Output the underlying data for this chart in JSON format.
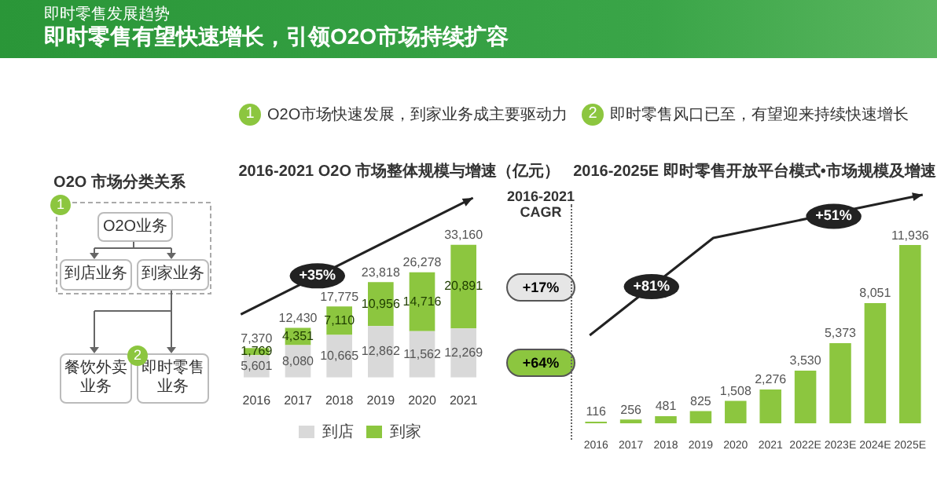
{
  "chart_data": [
    {
      "type": "other",
      "title": "即时零售有望快速增长，引领O2O市场持续扩容",
      "subtitle": "即时零售发展趋势",
      "annotations": [
        "O2O 市场分类关系",
        "1",
        "O2O业务",
        "到店业务",
        "到家业务",
        "2",
        "餐饮外卖业务",
        "即时零售业务"
      ]
    },
    {
      "type": "bar",
      "title": "2016-2021 O2O 市场整体规模与增速（亿元）",
      "subtitle": "O2O市场快速发展，到家业务成主要驱动力",
      "categories": [
        "2016",
        "2017",
        "2018",
        "2019",
        "2020",
        "2021"
      ],
      "stacked": true,
      "series": [
        {
          "name": "到店",
          "color": "#d9d9d9",
          "values": [
            5601,
            8080,
            10665,
            12862,
            11562,
            12269
          ],
          "value_labels": [
            "5,601",
            "8,080",
            "10,665",
            "12,862",
            "11,562",
            "12,269"
          ]
        },
        {
          "name": "到家",
          "color": "#8cc63f",
          "values": [
            1769,
            4351,
            7110,
            10956,
            14716,
            20891
          ],
          "value_labels": [
            "1,769",
            "4,351",
            "7,110",
            "10,956",
            "14,716",
            "20,891"
          ]
        }
      ],
      "totals": [
        "7,370",
        "12,430",
        "17,775",
        "23,818",
        "26,278",
        "33,160"
      ],
      "legend": "bottom",
      "tick_labels": "x",
      "annotations": [
        "1",
        "+35%",
        "2016-2021 CAGR",
        "+17%",
        "+64%"
      ]
    },
    {
      "type": "bar",
      "title": "2016-2025E 即时零售开放平台模式•市场规模及增速",
      "subtitle": "即时零售风口已至，有望迎来持续快速增长",
      "categories": [
        "2016",
        "2017",
        "2018",
        "2019",
        "2020",
        "2021",
        "2022E",
        "2023E",
        "2024E",
        "2025E"
      ],
      "values": [
        116,
        256,
        481,
        825,
        1508,
        2276,
        3530,
        5373,
        8051,
        11936
      ],
      "color": "#8cc63f",
      "value_labels": [
        "116",
        "256",
        "481",
        "825",
        "1,508",
        "2,276",
        "3,530",
        "5,373",
        "8,051",
        "11,936"
      ],
      "tick_labels": "x",
      "annotations": [
        "2",
        "+81%",
        "+51%"
      ]
    }
  ]
}
